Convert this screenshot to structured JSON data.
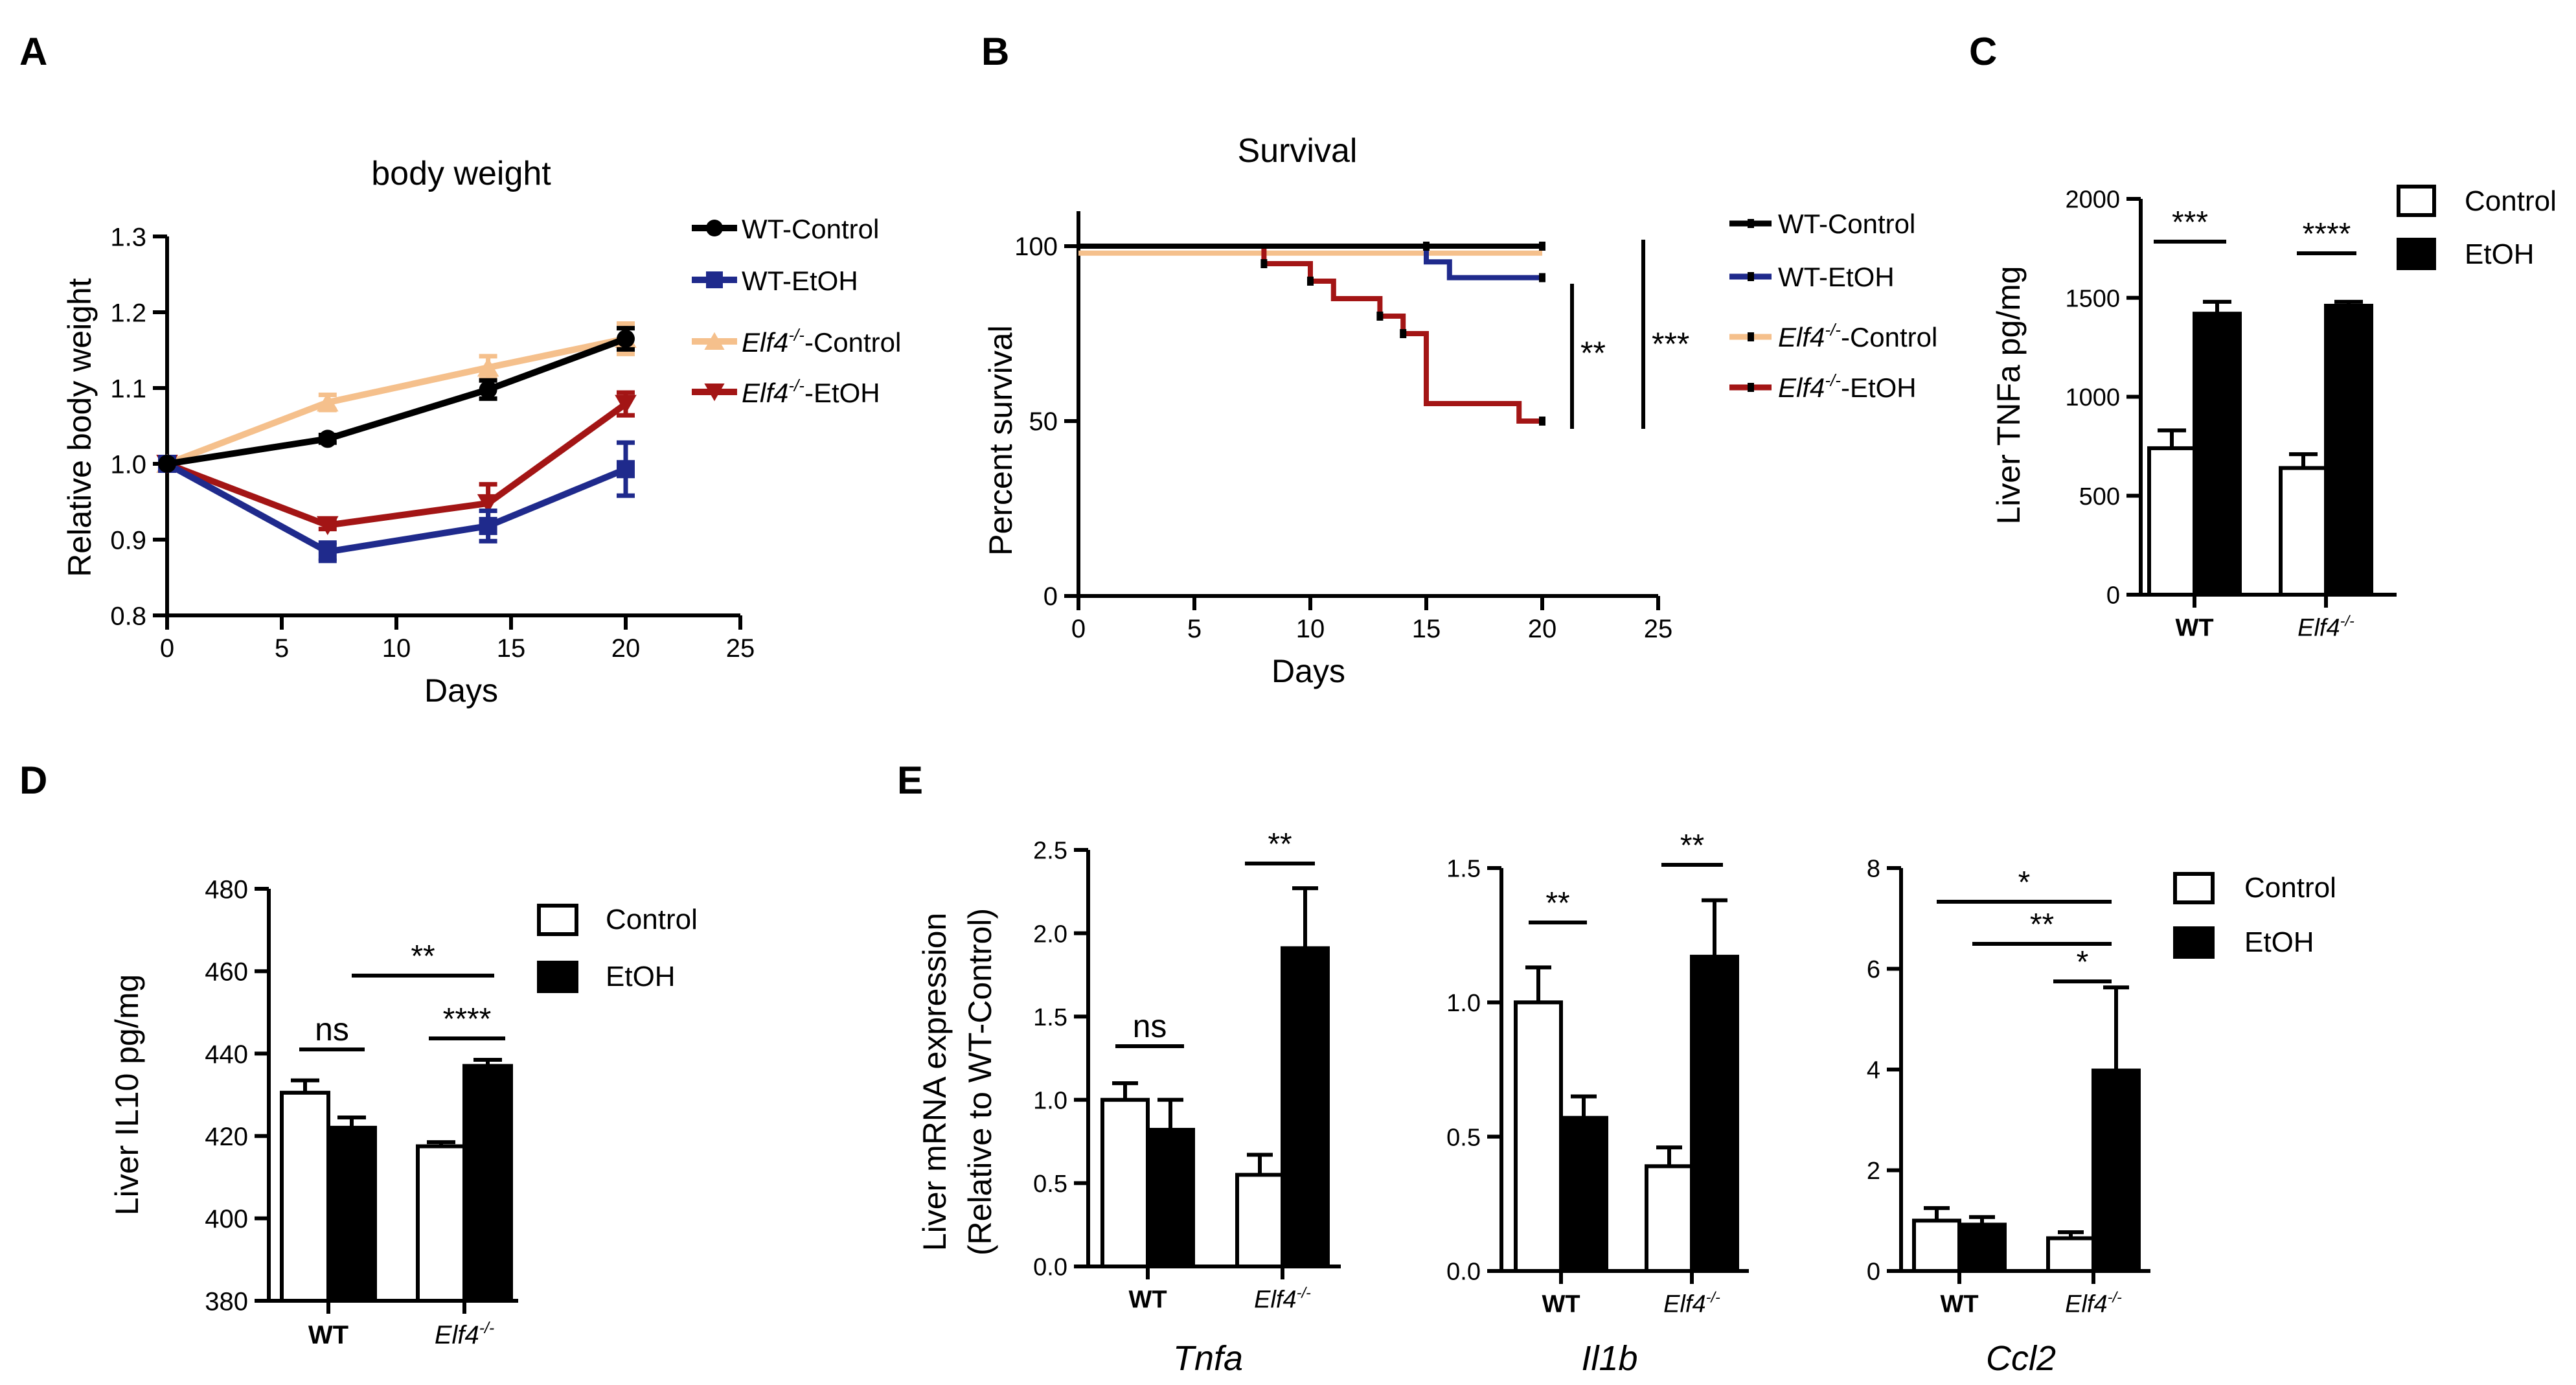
{
  "colors": {
    "wt_control": "#000000",
    "wt_etoh": "#1f2a8c",
    "ko_control": "#f5c08c",
    "ko_etoh": "#a31515",
    "bar_control": "#ffffff",
    "bar_etoh": "#000000"
  },
  "marker_icons": {
    "wt_control": "circle-marker-icon",
    "wt_etoh": "square-marker-icon",
    "ko_control": "triangle-up-marker-icon",
    "ko_etoh": "triangle-down-marker-icon"
  },
  "ko_suffix": "-/-",
  "panels": {
    "A": {
      "letter": "A"
    },
    "B": {
      "letter": "B"
    },
    "C": {
      "letter": "C"
    },
    "D": {
      "letter": "D"
    },
    "E": {
      "letter": "E",
      "ylabel_line1": "Liver mRNA expression",
      "ylabel_line2": "(Relative to WT-Control)"
    }
  },
  "legends": {
    "lines": [
      {
        "prefix": "WT",
        "text": "-Control",
        "ko": false
      },
      {
        "prefix": "WT",
        "text": "-EtOH",
        "ko": false
      },
      {
        "prefix": "Elf4",
        "text": "-Control",
        "ko": true
      },
      {
        "prefix": "Elf4",
        "text": "-EtOH",
        "ko": true
      }
    ],
    "bars": [
      "Control",
      "EtOH"
    ]
  },
  "chart_data": [
    {
      "id": "A",
      "type": "line",
      "title": "body weight",
      "xlabel": "Days",
      "ylabel": "Relative body weight",
      "xlim": [
        0,
        25
      ],
      "ylim": [
        0.8,
        1.3
      ],
      "xticks": [
        "0",
        "5",
        "10",
        "15",
        "20",
        "25"
      ],
      "yticks": [
        "0.8",
        "0.9",
        "1.0",
        "1.1",
        "1.2",
        "1.3"
      ],
      "x": [
        0,
        7,
        14,
        20
      ],
      "series": [
        {
          "name": "WT-Control",
          "values": [
            1.0,
            1.033,
            1.098,
            1.165
          ],
          "err": [
            0,
            0.005,
            0.012,
            0.014
          ]
        },
        {
          "name": "WT-EtOH",
          "values": [
            1.0,
            0.884,
            0.918,
            0.993
          ],
          "err": [
            0,
            0.012,
            0.02,
            0.035
          ]
        },
        {
          "name": "Elf4-/--Control",
          "values": [
            1.0,
            1.081,
            1.127,
            1.165
          ],
          "err": [
            0,
            0.01,
            0.015,
            0.02
          ]
        },
        {
          "name": "Elf4-/--EtOH",
          "values": [
            1.0,
            0.919,
            0.948,
            1.079
          ],
          "err": [
            0,
            0.005,
            0.025,
            0.015
          ]
        }
      ]
    },
    {
      "id": "B",
      "type": "line",
      "title": "Survival",
      "xlabel": "Days",
      "ylabel": "Percent survival",
      "xlim": [
        0,
        25
      ],
      "ylim": [
        0,
        110
      ],
      "xticks": [
        "0",
        "5",
        "10",
        "15",
        "20",
        "25"
      ],
      "yticks": [
        "0",
        "50",
        "100"
      ],
      "series": [
        {
          "name": "WT-Control",
          "steps": [
            [
              0,
              100
            ],
            [
              20,
              100
            ]
          ],
          "censor": [
            [
              20,
              100
            ]
          ]
        },
        {
          "name": "WT-EtOH",
          "steps": [
            [
              0,
              100
            ],
            [
              15,
              100
            ],
            [
              15,
              95.5
            ],
            [
              16,
              95.5
            ],
            [
              16,
              91
            ],
            [
              20,
              91
            ]
          ],
          "censor": [
            [
              15,
              100
            ],
            [
              20,
              91
            ]
          ]
        },
        {
          "name": "Elf4-/--Control",
          "steps": [
            [
              0,
              98
            ],
            [
              20,
              98
            ]
          ],
          "censor": []
        },
        {
          "name": "Elf4-/--EtOH",
          "steps": [
            [
              0,
              100
            ],
            [
              8,
              100
            ],
            [
              8,
              95
            ],
            [
              10,
              95
            ],
            [
              10,
              90
            ],
            [
              11,
              90
            ],
            [
              11,
              85
            ],
            [
              13,
              85
            ],
            [
              13,
              80
            ],
            [
              14,
              80
            ],
            [
              14,
              75
            ],
            [
              15,
              75
            ],
            [
              15,
              55
            ],
            [
              19,
              55
            ],
            [
              19,
              50
            ],
            [
              20,
              50
            ]
          ],
          "censor": [
            [
              8,
              95
            ],
            [
              10,
              90
            ],
            [
              13,
              80
            ],
            [
              14,
              75
            ],
            [
              20,
              50
            ]
          ]
        }
      ],
      "annotations": [
        "**",
        "***"
      ]
    },
    {
      "id": "C",
      "type": "bar",
      "ylabel": "Liver TNFa pg/mg",
      "ylim": [
        0,
        2000
      ],
      "yticks": [
        "0",
        "500",
        "1000",
        "1500",
        "2000"
      ],
      "categories": [
        "WT",
        "Elf4-/-"
      ],
      "series": [
        {
          "name": "Control",
          "values": [
            740,
            640
          ],
          "err": [
            90,
            70
          ]
        },
        {
          "name": "EtOH",
          "values": [
            1420,
            1460
          ],
          "err": [
            60,
            20
          ]
        }
      ],
      "annotations": [
        "***",
        "****"
      ]
    },
    {
      "id": "D",
      "type": "bar",
      "ylabel": "Liver IL10 pg/mg",
      "ylim": [
        380,
        480
      ],
      "yticks": [
        "380",
        "400",
        "420",
        "440",
        "460",
        "480"
      ],
      "categories": [
        "WT",
        "Elf4-/-"
      ],
      "series": [
        {
          "name": "Control",
          "values": [
            430.5,
            417.5
          ],
          "err": [
            3,
            1
          ]
        },
        {
          "name": "EtOH",
          "values": [
            422,
            437
          ],
          "err": [
            2.5,
            1.5
          ]
        }
      ],
      "annotations": [
        "ns",
        "****",
        "**"
      ]
    },
    {
      "id": "E1",
      "type": "bar",
      "gene": "Tnfa",
      "ylim": [
        0,
        2.5
      ],
      "yticks": [
        "0.0",
        "0.5",
        "1.0",
        "1.5",
        "2.0",
        "2.5"
      ],
      "categories": [
        "WT",
        "Elf4-/-"
      ],
      "series": [
        {
          "name": "Control",
          "values": [
            1.0,
            0.55
          ],
          "err": [
            0.1,
            0.12
          ]
        },
        {
          "name": "EtOH",
          "values": [
            0.82,
            1.91
          ],
          "err": [
            0.18,
            0.36
          ]
        }
      ],
      "annotations": [
        "ns",
        "**"
      ]
    },
    {
      "id": "E2",
      "type": "bar",
      "gene": "Il1b",
      "ylim": [
        0,
        1.5
      ],
      "yticks": [
        "0.0",
        "0.5",
        "1.0",
        "1.5"
      ],
      "categories": [
        "WT",
        "Elf4-/-"
      ],
      "series": [
        {
          "name": "Control",
          "values": [
            1.0,
            0.39
          ],
          "err": [
            0.13,
            0.07
          ]
        },
        {
          "name": "EtOH",
          "values": [
            0.57,
            1.17
          ],
          "err": [
            0.08,
            0.21
          ]
        }
      ],
      "annotations": [
        "**",
        "**"
      ]
    },
    {
      "id": "E3",
      "type": "bar",
      "gene": "Ccl2",
      "ylim": [
        0,
        8
      ],
      "yticks": [
        "0",
        "2",
        "4",
        "6",
        "8"
      ],
      "categories": [
        "WT",
        "Elf4-/-"
      ],
      "series": [
        {
          "name": "Control",
          "values": [
            1.0,
            0.65
          ],
          "err": [
            0.25,
            0.12
          ]
        },
        {
          "name": "EtOH",
          "values": [
            0.92,
            3.98
          ],
          "err": [
            0.15,
            1.65
          ]
        }
      ],
      "annotations": [
        "*",
        "**",
        "*"
      ]
    }
  ]
}
